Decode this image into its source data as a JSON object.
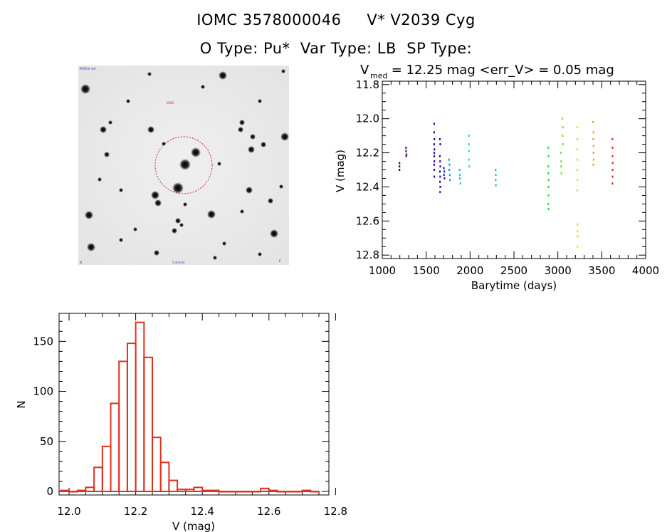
{
  "header": {
    "line1": "IOMC 3578000046     V* V2039 Cyg",
    "line2": "O Type: Pu*  Var Type: LB  SP Type:"
  },
  "finding_chart": {
    "corner_tl": "POSS-II red",
    "marker_label": "IOMC",
    "bottom_label": "5 arcmin",
    "corner_bl": "N",
    "corner_br": "E"
  },
  "chart_data": [
    {
      "type": "scatter",
      "title_prefix": "V",
      "title_sub": "med",
      "title_rest": " = 12.25 mag <err_V> = 0.05 mag",
      "xlabel": "Barytime (days)",
      "ylabel": "V (mag)",
      "xlim": [
        1000,
        4000
      ],
      "ylim": [
        12.8,
        11.8
      ],
      "y_inverted": true,
      "xticks": [
        1000,
        1500,
        2000,
        2500,
        3000,
        3500,
        4000
      ],
      "yticks": [
        11.8,
        12.0,
        12.2,
        12.4,
        12.6,
        12.8
      ],
      "series": [
        {
          "color": "#2a0a70",
          "points": [
            [
              1195,
              12.26
            ],
            [
              1195,
              12.28
            ],
            [
              1195,
              12.3
            ]
          ]
        },
        {
          "color": "#4a0f90",
          "points": [
            [
              1270,
              12.17
            ],
            [
              1270,
              12.19
            ],
            [
              1275,
              12.21
            ],
            [
              1272,
              12.22
            ]
          ]
        },
        {
          "color": "#3a0a9a",
          "points": [
            [
              1590,
              12.03
            ],
            [
              1590,
              12.08
            ],
            [
              1592,
              12.12
            ],
            [
              1590,
              12.15
            ],
            [
              1593,
              12.18
            ],
            [
              1591,
              12.2
            ],
            [
              1590,
              12.22
            ],
            [
              1592,
              12.25
            ],
            [
              1590,
              12.27
            ],
            [
              1591,
              12.3
            ],
            [
              1592,
              12.34
            ]
          ]
        },
        {
          "color": "#2a10b0",
          "points": [
            [
              1655,
              12.12
            ],
            [
              1660,
              12.15
            ],
            [
              1655,
              12.22
            ],
            [
              1658,
              12.25
            ],
            [
              1660,
              12.28
            ],
            [
              1656,
              12.31
            ],
            [
              1659,
              12.34
            ],
            [
              1657,
              12.37
            ],
            [
              1660,
              12.4
            ],
            [
              1658,
              12.43
            ]
          ]
        },
        {
          "color": "#1030d0",
          "points": [
            [
              1700,
              12.29
            ],
            [
              1705,
              12.31
            ],
            [
              1702,
              12.33
            ],
            [
              1708,
              12.35
            ]
          ]
        },
        {
          "color": "#10a0e0",
          "points": [
            [
              1760,
              12.24
            ],
            [
              1765,
              12.27
            ],
            [
              1762,
              12.3
            ],
            [
              1768,
              12.33
            ],
            [
              1770,
              12.36
            ]
          ]
        },
        {
          "color": "#10c0e0",
          "points": [
            [
              1880,
              12.3
            ],
            [
              1885,
              12.33
            ],
            [
              1882,
              12.35
            ],
            [
              1890,
              12.38
            ]
          ]
        },
        {
          "color": "#20d8d8",
          "points": [
            [
              1985,
              12.1
            ],
            [
              1985,
              12.15
            ],
            [
              1988,
              12.19
            ],
            [
              1986,
              12.24
            ],
            [
              1990,
              12.28
            ]
          ]
        },
        {
          "color": "#20c890",
          "points": [
            [
              2290,
              12.3
            ],
            [
              2292,
              12.33
            ],
            [
              2291,
              12.36
            ],
            [
              2293,
              12.39
            ]
          ]
        },
        {
          "color": "#30d850",
          "points": [
            [
              2890,
              12.17
            ],
            [
              2892,
              12.22
            ],
            [
              2891,
              12.28
            ],
            [
              2890,
              12.32
            ],
            [
              2893,
              12.36
            ],
            [
              2891,
              12.4
            ],
            [
              2892,
              12.45
            ],
            [
              2890,
              12.5
            ],
            [
              2893,
              12.53
            ]
          ]
        },
        {
          "color": "#80e020",
          "points": [
            [
              3035,
              12.2
            ],
            [
              3038,
              12.25
            ],
            [
              3036,
              12.28
            ],
            [
              3040,
              12.32
            ],
            [
              3050,
              12.0
            ],
            [
              3055,
              12.05
            ],
            [
              3052,
              12.1
            ],
            [
              3056,
              12.15
            ]
          ]
        },
        {
          "color": "#e8e010",
          "points": [
            [
              3220,
              12.05
            ],
            [
              3222,
              12.12
            ],
            [
              3221,
              12.18
            ],
            [
              3223,
              12.24
            ],
            [
              3220,
              12.3
            ],
            [
              3222,
              12.36
            ],
            [
              3221,
              12.42
            ],
            [
              3223,
              12.62
            ],
            [
              3222,
              12.66
            ],
            [
              3224,
              12.69
            ],
            [
              3222,
              12.75
            ]
          ]
        },
        {
          "color": "#f0a020",
          "points": [
            [
              3400,
              12.02
            ],
            [
              3405,
              12.08
            ],
            [
              3402,
              12.12
            ],
            [
              3406,
              12.16
            ],
            [
              3404,
              12.2
            ],
            [
              3408,
              12.24
            ],
            [
              3403,
              12.27
            ]
          ]
        },
        {
          "color": "#d83020",
          "points": [
            [
              3620,
              12.12
            ],
            [
              3622,
              12.17
            ],
            [
              3621,
              12.22
            ],
            [
              3624,
              12.26
            ],
            [
              3622,
              12.3
            ],
            [
              3623,
              12.34
            ],
            [
              3621,
              12.38
            ]
          ]
        }
      ]
    },
    {
      "type": "bar",
      "subtype": "histogram",
      "xlabel": "V (mag)",
      "ylabel": "N",
      "xlim": [
        11.97,
        12.78
      ],
      "ylim": [
        0,
        178
      ],
      "xticks": [
        12.0,
        12.2,
        12.4,
        12.6,
        12.8
      ],
      "yticks": [
        0,
        50,
        100,
        150
      ],
      "bin_edges": [
        11.975,
        12.0,
        12.025,
        12.05,
        12.075,
        12.1,
        12.125,
        12.15,
        12.175,
        12.2,
        12.225,
        12.25,
        12.275,
        12.3,
        12.325,
        12.35,
        12.375,
        12.4,
        12.425,
        12.45,
        12.475,
        12.5,
        12.525,
        12.55,
        12.575,
        12.6,
        12.625,
        12.65,
        12.675,
        12.7,
        12.725,
        12.75
      ],
      "values": [
        1,
        0,
        1,
        4,
        24,
        45,
        88,
        130,
        148,
        169,
        134,
        54,
        29,
        11,
        2,
        2,
        4,
        1,
        1,
        0,
        0,
        0,
        0,
        0,
        3,
        1,
        0,
        0,
        0,
        1,
        0
      ],
      "color": "#e0301e"
    }
  ]
}
